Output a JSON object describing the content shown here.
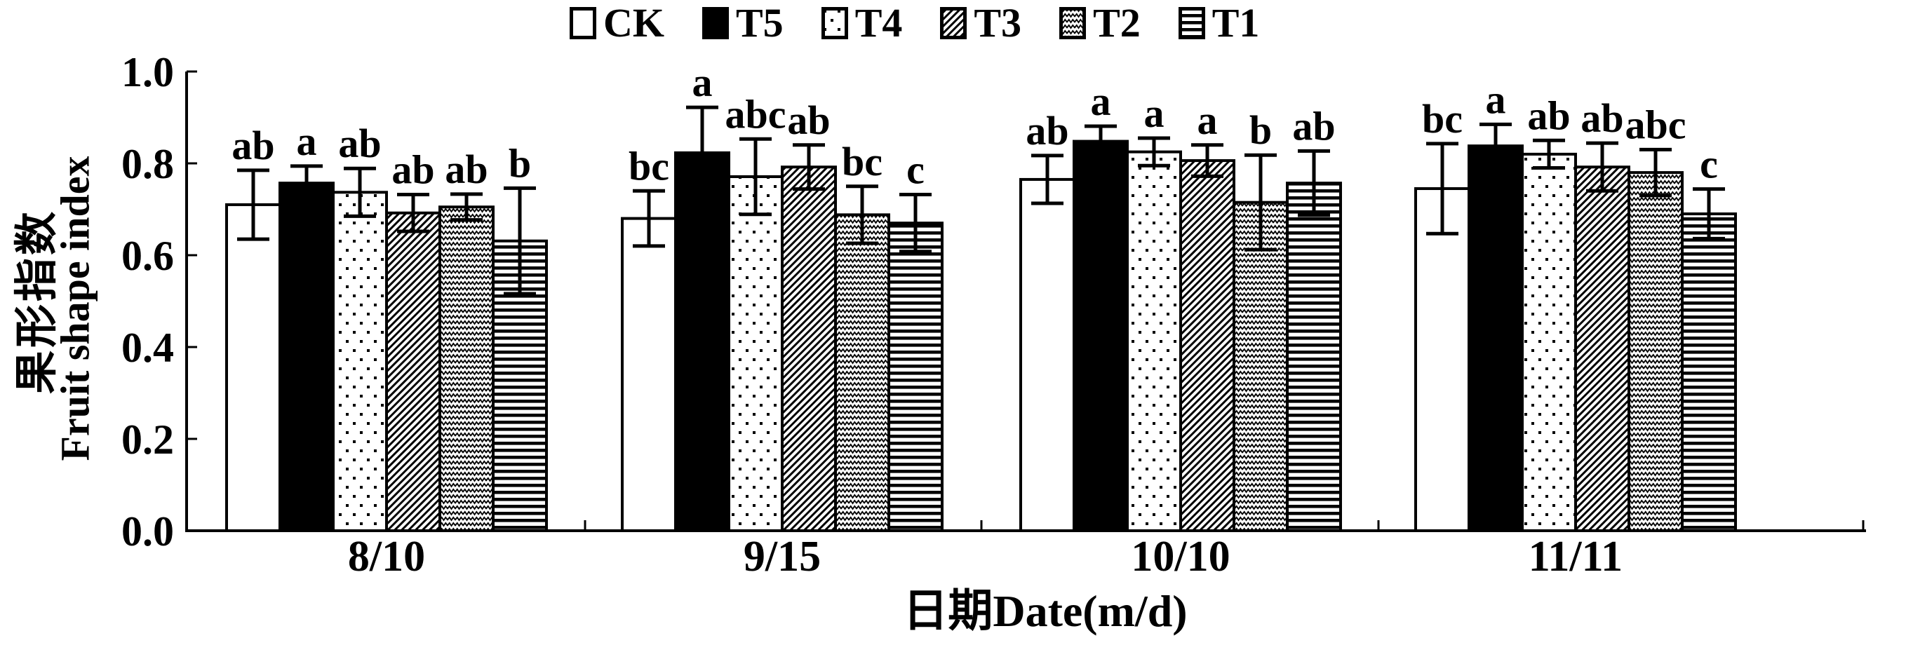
{
  "figure": {
    "background": "#ffffff",
    "ink_color": "#000000"
  },
  "legend": {
    "items": [
      {
        "label": "CK",
        "pattern": "plain"
      },
      {
        "label": "T5",
        "pattern": "solid"
      },
      {
        "label": "T4",
        "pattern": "dots"
      },
      {
        "label": "T3",
        "pattern": "diagonal"
      },
      {
        "label": "T2",
        "pattern": "zigzag"
      },
      {
        "label": "T1",
        "pattern": "hlines"
      }
    ]
  },
  "y_axis": {
    "label_zh": "果形指数",
    "label_en": "Fruit shape index",
    "tick_labels": [
      "0.0",
      "0.2",
      "0.4",
      "0.6",
      "0.8",
      "1.0"
    ],
    "min": 0.0,
    "max": 1.0
  },
  "x_axis": {
    "label": "日期Date(m/d)",
    "categories": [
      "8/10",
      "9/15",
      "10/10",
      "11/11"
    ]
  },
  "chart_data": {
    "type": "bar",
    "title": "",
    "xlabel": "日期Date(m/d)",
    "ylabel": "果形指数 Fruit shape index",
    "ylim": [
      0.0,
      1.0
    ],
    "yticks": [
      0.0,
      0.2,
      0.4,
      0.6,
      0.8,
      1.0
    ],
    "ytick_labels": [
      "0.0",
      "0.2",
      "0.4",
      "0.6",
      "0.8",
      "1.0"
    ],
    "grid": false,
    "legend_position": "top-center",
    "error_bars": true,
    "categories": [
      "8/10",
      "9/15",
      "10/10",
      "11/11"
    ],
    "series": [
      {
        "name": "CK",
        "pattern": "plain",
        "values": [
          0.71,
          0.68,
          0.765,
          0.745
        ],
        "errors": [
          0.075,
          0.06,
          0.052,
          0.098
        ],
        "letters": [
          "ab",
          "bc",
          "ab",
          "bc"
        ]
      },
      {
        "name": "T5",
        "pattern": "solid",
        "values": [
          0.757,
          0.823,
          0.848,
          0.838
        ],
        "errors": [
          0.037,
          0.099,
          0.033,
          0.047
        ],
        "letters": [
          "a",
          "a",
          "a",
          "a"
        ]
      },
      {
        "name": "T4",
        "pattern": "dots",
        "values": [
          0.737,
          0.771,
          0.825,
          0.82
        ],
        "errors": [
          0.052,
          0.082,
          0.03,
          0.03
        ],
        "letters": [
          "ab",
          "abc",
          "a",
          "ab"
        ]
      },
      {
        "name": "T3",
        "pattern": "diagonal",
        "values": [
          0.692,
          0.792,
          0.806,
          0.792
        ],
        "errors": [
          0.04,
          0.048,
          0.034,
          0.052
        ],
        "letters": [
          "ab",
          "ab",
          "a",
          "ab"
        ]
      },
      {
        "name": "T2",
        "pattern": "zigzag",
        "values": [
          0.705,
          0.688,
          0.715,
          0.78
        ],
        "errors": [
          0.028,
          0.062,
          0.103,
          0.05
        ],
        "letters": [
          "ab",
          "bc",
          "b",
          "abc"
        ]
      },
      {
        "name": "T1",
        "pattern": "hlines",
        "values": [
          0.631,
          0.67,
          0.757,
          0.69
        ],
        "errors": [
          0.115,
          0.062,
          0.07,
          0.054
        ],
        "letters": [
          "b",
          "c",
          "ab",
          "c"
        ]
      }
    ]
  }
}
